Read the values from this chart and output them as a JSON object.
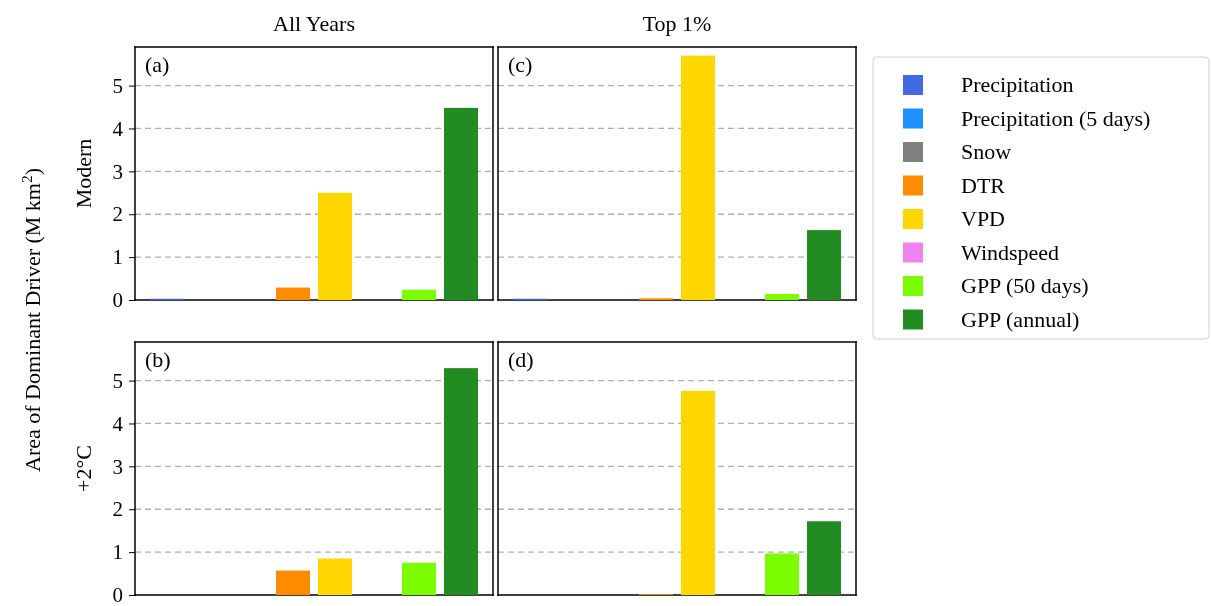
{
  "chart_data": [
    {
      "type": "bar",
      "ylabel": "Modern",
      "annotations": [
        "(a)",
        "(c)",
        "Area of Dominant Driver (M km$^{2}$)"
      ],
      "categories": [
        "All Years",
        "Top 1%"
      ],
      "ylim": [
        0,
        5.9
      ],
      "yticks": [
        0,
        1,
        2,
        3,
        4,
        5
      ],
      "grid": "y",
      "legend": "right",
      "series": [
        {
          "name": "Precipitation",
          "color": "#4169e1",
          "values": [
            0.03,
            0.03
          ]
        },
        {
          "name": "Precipitation (5 days)",
          "color": "#1e90ff",
          "values": [
            0,
            0
          ]
        },
        {
          "name": "Snow",
          "color": "#808080",
          "values": [
            0,
            0
          ]
        },
        {
          "name": "DTR",
          "color": "#ff8c00",
          "values": [
            0.29,
            0.04
          ]
        },
        {
          "name": "VPD",
          "color": "#ffd700",
          "values": [
            2.5,
            5.7
          ]
        },
        {
          "name": "Windspeed",
          "color": "#ee82ee",
          "values": [
            0,
            0
          ]
        },
        {
          "name": "GPP (50 days)",
          "color": "#7cfc00",
          "values": [
            0.24,
            0.14
          ]
        },
        {
          "name": "GPP (annual)",
          "color": "#228b22",
          "values": [
            4.48,
            1.63
          ]
        }
      ]
    },
    {
      "type": "bar",
      "ylabel": "+2°C",
      "annotations": [
        "(b)",
        "(d)"
      ],
      "categories": [
        null,
        null
      ],
      "ylim": [
        0,
        5.9
      ],
      "yticks": [
        0,
        1,
        2,
        3,
        4,
        5
      ],
      "grid": "y",
      "tick_labels": "y",
      "series": [
        {
          "color": "#4169e1",
          "values": [
            0,
            0
          ]
        },
        {
          "color": "#1e90ff",
          "values": [
            0,
            0
          ]
        },
        {
          "color": "#808080",
          "values": [
            0,
            0
          ]
        },
        {
          "color": "#ff8c00",
          "values": [
            0.57,
            0.02
          ]
        },
        {
          "color": "#ffd700",
          "values": [
            0.85,
            4.76
          ]
        },
        {
          "color": "#ee82ee",
          "values": [
            0,
            0
          ]
        },
        {
          "color": "#7cfc00",
          "values": [
            0.75,
            0.97
          ]
        },
        {
          "color": "#228b22",
          "values": [
            5.29,
            1.72
          ]
        }
      ]
    }
  ]
}
